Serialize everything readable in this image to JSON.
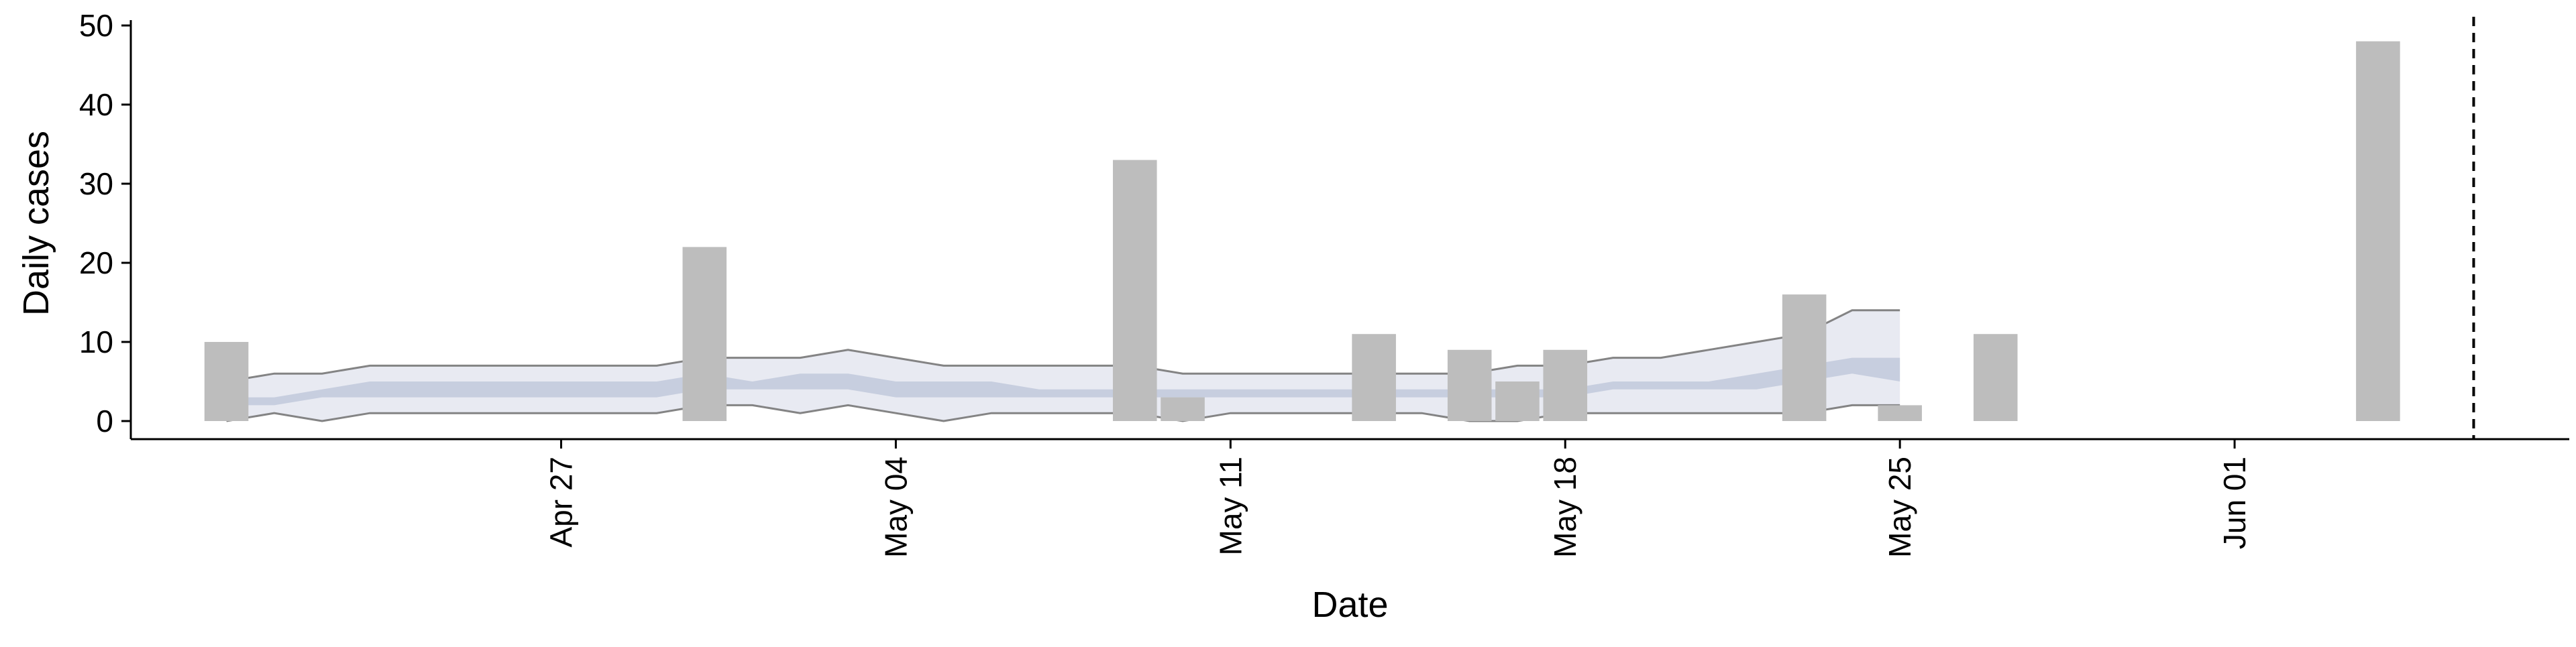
{
  "chart_data": {
    "type": "bar",
    "xlabel": "Date",
    "ylabel": "Daily cases",
    "ylim": [
      0,
      50
    ],
    "yticks": [
      0,
      10,
      20,
      30,
      40,
      50
    ],
    "xlim": [
      "2020-04-18",
      "2020-06-08"
    ],
    "xticks": [
      {
        "date": "2020-04-27",
        "label": "Apr 27"
      },
      {
        "date": "2020-05-04",
        "label": "May 04"
      },
      {
        "date": "2020-05-11",
        "label": "May 11"
      },
      {
        "date": "2020-05-18",
        "label": "May 18"
      },
      {
        "date": "2020-05-25",
        "label": "May 25"
      },
      {
        "date": "2020-06-01",
        "label": "Jun 01"
      }
    ],
    "grid": false,
    "series": [
      {
        "kind": "bar",
        "x": [
          "2020-04-20",
          "2020-04-30",
          "2020-05-09",
          "2020-05-10",
          "2020-05-14",
          "2020-05-16",
          "2020-05-17",
          "2020-05-18",
          "2020-05-23",
          "2020-05-25",
          "2020-05-27",
          "2020-06-04"
        ],
        "values": [
          10,
          22,
          33,
          3,
          11,
          9,
          5,
          9,
          16,
          2,
          11,
          48
        ]
      },
      {
        "kind": "band",
        "x": [
          "2020-04-20",
          "2020-04-21",
          "2020-04-22",
          "2020-04-23",
          "2020-04-24",
          "2020-04-25",
          "2020-04-26",
          "2020-04-27",
          "2020-04-28",
          "2020-04-29",
          "2020-04-30",
          "2020-05-01",
          "2020-05-02",
          "2020-05-03",
          "2020-05-04",
          "2020-05-05",
          "2020-05-06",
          "2020-05-07",
          "2020-05-08",
          "2020-05-09",
          "2020-05-10",
          "2020-05-11",
          "2020-05-12",
          "2020-05-13",
          "2020-05-14",
          "2020-05-15",
          "2020-05-16",
          "2020-05-17",
          "2020-05-18",
          "2020-05-19",
          "2020-05-20",
          "2020-05-21",
          "2020-05-22",
          "2020-05-23",
          "2020-05-24",
          "2020-05-25"
        ],
        "outer_lower": [
          0,
          1,
          0,
          1,
          1,
          1,
          1,
          1,
          1,
          1,
          2,
          2,
          1,
          2,
          1,
          0,
          1,
          1,
          1,
          1,
          0,
          1,
          1,
          1,
          1,
          1,
          0,
          0,
          1,
          1,
          1,
          1,
          1,
          1,
          2,
          2
        ],
        "outer_upper": [
          5,
          6,
          6,
          7,
          7,
          7,
          7,
          7,
          7,
          7,
          8,
          8,
          8,
          9,
          8,
          7,
          7,
          7,
          7,
          7,
          6,
          6,
          6,
          6,
          6,
          6,
          6,
          7,
          7,
          8,
          8,
          9,
          10,
          11,
          14,
          14
        ],
        "inner_lower": [
          2,
          2,
          3,
          3,
          3,
          3,
          3,
          3,
          3,
          3,
          4,
          4,
          4,
          4,
          3,
          3,
          3,
          3,
          3,
          3,
          3,
          3,
          3,
          3,
          3,
          3,
          3,
          3,
          3,
          4,
          4,
          4,
          4,
          5,
          6,
          5
        ],
        "inner_upper": [
          3,
          3,
          4,
          5,
          5,
          5,
          5,
          5,
          5,
          5,
          6,
          5,
          6,
          6,
          5,
          5,
          5,
          4,
          4,
          4,
          4,
          4,
          4,
          4,
          4,
          4,
          4,
          4,
          4,
          5,
          5,
          5,
          6,
          7,
          8,
          8
        ]
      }
    ],
    "vline": "2020-06-06",
    "colors": {
      "bars": "#bdbdbd",
      "outer_band": "#e8eaf2",
      "inner_band": "#c3cbdd",
      "band_edge": "#707070",
      "axis": "#000000"
    }
  }
}
